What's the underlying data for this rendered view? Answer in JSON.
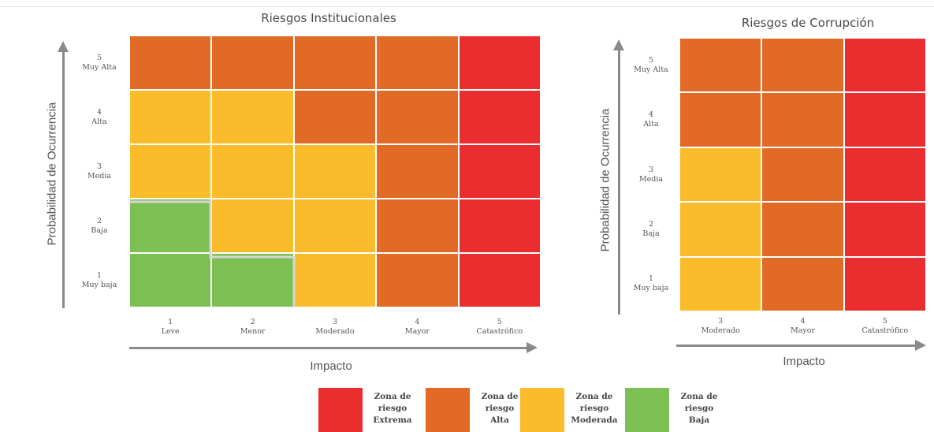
{
  "colors": {
    "extrema": "#ea2d2e",
    "alta": "#e06a26",
    "moderada": "#fbbc2b",
    "baja": "#7cbf52",
    "axis": "#8a8a8a"
  },
  "institucional": {
    "title": "Riesgos Institucionales",
    "y_axis_label": "Probabilidad de Ocurrencia",
    "x_axis_label": "Impacto",
    "rows": [
      {
        "num": "5",
        "name": "Muy Alta",
        "zones": [
          "alta",
          "alta",
          "alta",
          "alta",
          "extrema"
        ]
      },
      {
        "num": "4",
        "name": "Alta",
        "zones": [
          "moderada",
          "moderada",
          "alta",
          "alta",
          "extrema"
        ]
      },
      {
        "num": "3",
        "name": "Media",
        "zones": [
          "moderada",
          "moderada",
          "moderada",
          "alta",
          "extrema"
        ]
      },
      {
        "num": "2",
        "name": "Baja",
        "zones": [
          "baja",
          "moderada",
          "moderada",
          "alta",
          "extrema"
        ]
      },
      {
        "num": "1",
        "name": "Muy baja",
        "zones": [
          "baja",
          "baja",
          "moderada",
          "alta",
          "extrema"
        ]
      }
    ],
    "cols": [
      {
        "num": "1",
        "name": "Leve"
      },
      {
        "num": "2",
        "name": "Menor"
      },
      {
        "num": "3",
        "name": "Moderado"
      },
      {
        "num": "4",
        "name": "Mayor"
      },
      {
        "num": "5",
        "name": "Catastrófico"
      }
    ]
  },
  "corrupcion": {
    "title": "Riesgos de Corrupción",
    "y_axis_label": "Probabilidad de Ocurrencia",
    "x_axis_label": "Impacto",
    "rows": [
      {
        "num": "5",
        "name": "Muy Alta",
        "zones": [
          "alta",
          "alta",
          "extrema"
        ]
      },
      {
        "num": "4",
        "name": "Alta",
        "zones": [
          "alta",
          "alta",
          "extrema"
        ]
      },
      {
        "num": "3",
        "name": "Media",
        "zones": [
          "moderada",
          "alta",
          "extrema"
        ]
      },
      {
        "num": "2",
        "name": "Baja",
        "zones": [
          "moderada",
          "alta",
          "extrema"
        ]
      },
      {
        "num": "1",
        "name": "Muy baja",
        "zones": [
          "moderada",
          "alta",
          "extrema"
        ]
      }
    ],
    "cols": [
      {
        "num": "3",
        "name": "Moderado"
      },
      {
        "num": "4",
        "name": "Mayor"
      },
      {
        "num": "5",
        "name": "Catastrófico"
      }
    ]
  },
  "legend": [
    {
      "zone": "extrema",
      "lines": [
        "Zona de",
        "riesgo",
        "Extrema"
      ]
    },
    {
      "zone": "alta",
      "lines": [
        "Zona de",
        "riesgo",
        "Alta"
      ]
    },
    {
      "zone": "moderada",
      "lines": [
        "Zona de",
        "riesgo",
        "Moderada"
      ]
    },
    {
      "zone": "baja",
      "lines": [
        "Zona de",
        "riesgo",
        "Baja"
      ]
    }
  ]
}
